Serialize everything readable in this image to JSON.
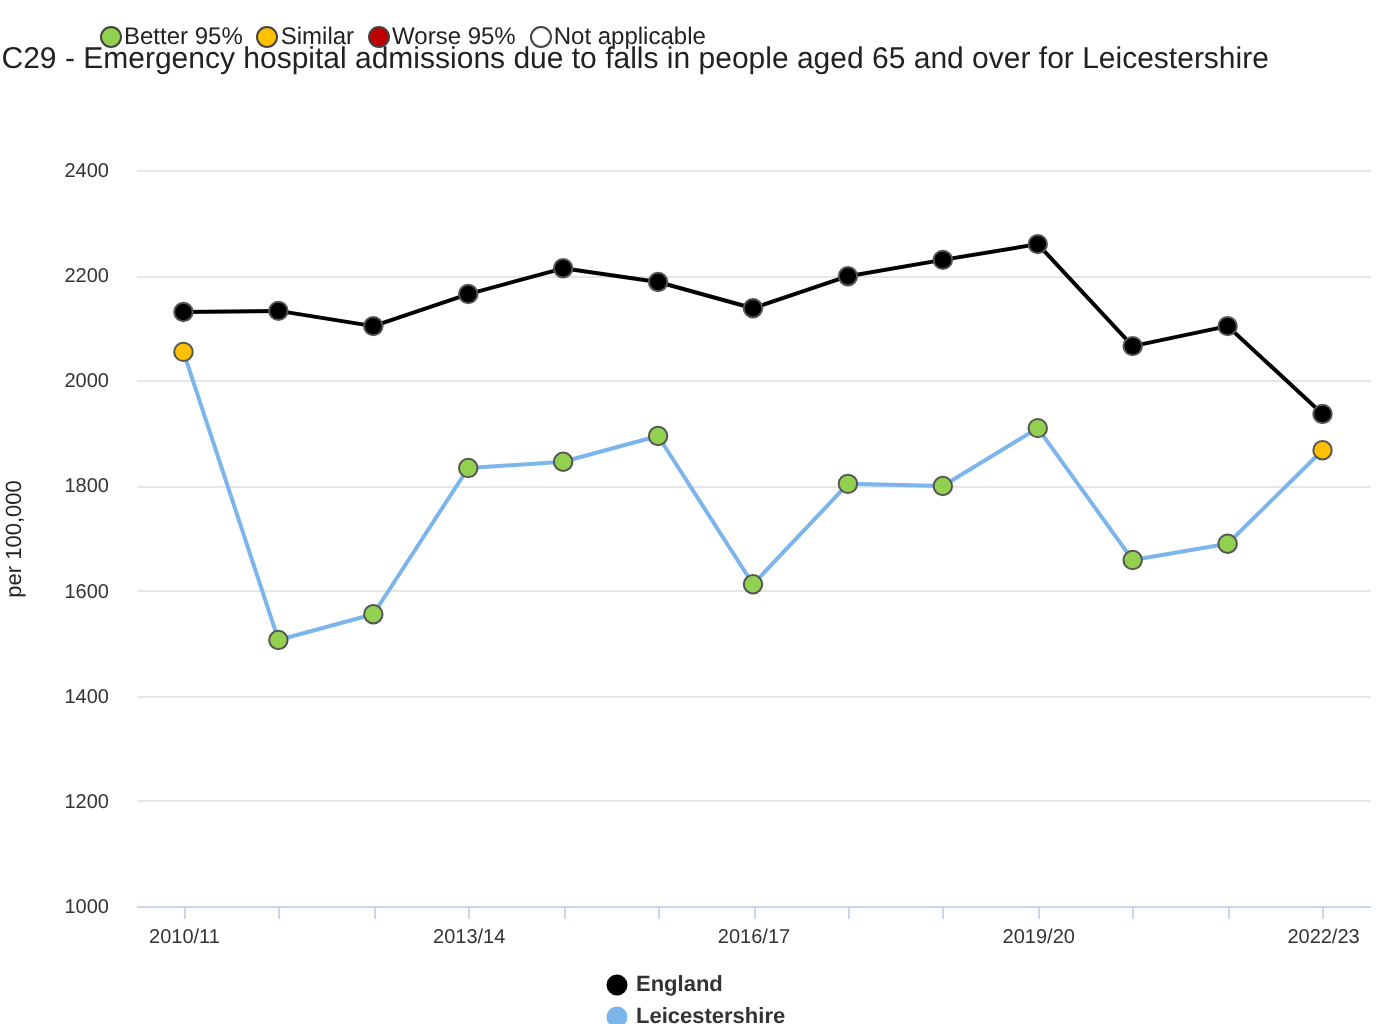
{
  "chart_data": {
    "type": "line",
    "title": "C29 - Emergency hospital admissions due to falls in people aged 65 and over for Leicestershire",
    "ylabel": "per 100,000",
    "categories": [
      "2010/11",
      null,
      null,
      "2013/14",
      null,
      null,
      "2016/17",
      null,
      null,
      "2019/20",
      null,
      null,
      "2022/23"
    ],
    "series": [
      {
        "name": "England",
        "color": "#000000",
        "values": [
          2130,
          2132,
          2103,
          2164,
          2213,
          2187,
          2137,
          2198,
          2229,
          2259,
          2065,
          2103,
          1936
        ]
      },
      {
        "name": "Leicestershire",
        "color": "#7cb5ec",
        "values": [
          2054,
          1506,
          1555,
          1833,
          1845,
          1894,
          1612,
          1803,
          1799,
          1909,
          1658,
          1689,
          1867
        ],
        "colors": [
          "#ffc000",
          "#92d050",
          "#92d050",
          "#92d050",
          "#92d050",
          "#92d050",
          "#92d050",
          "#92d050",
          "#92d050",
          "#92d050",
          "#92d050",
          "#92d050",
          "#ffc000"
        ]
      }
    ],
    "annotations": [
      "Better 95%",
      "Similar",
      "Worse 95%",
      "Not applicable"
    ],
    "ylim": [
      1000,
      2400
    ],
    "yticks": [
      1000,
      1200,
      1400,
      1600,
      1800,
      2000,
      2200,
      2400
    ],
    "grid": "y",
    "legend": "bottom",
    "marker": "circle",
    "line_style": "solid"
  }
}
